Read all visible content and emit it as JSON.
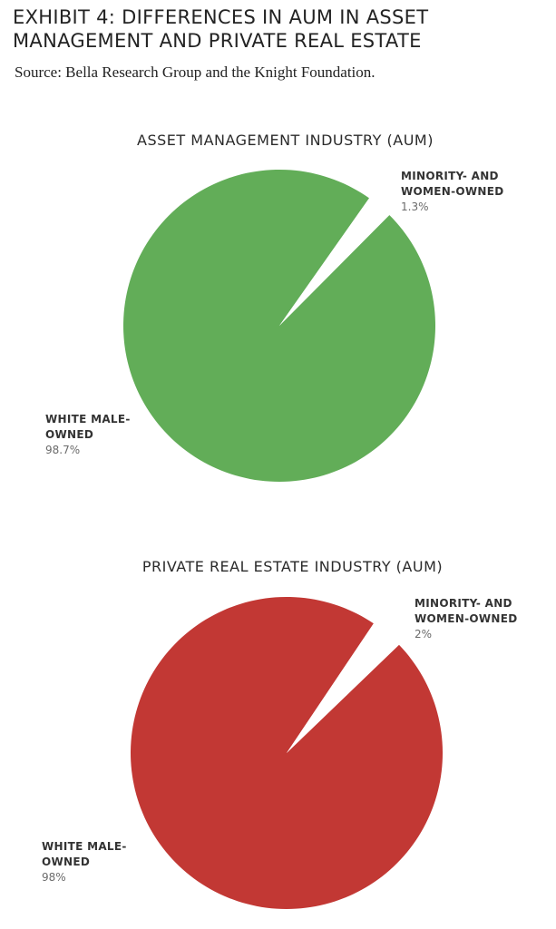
{
  "header": {
    "title_line1": "EXHIBIT 4: DIFFERENCES IN AUM IN ASSET",
    "title_line2": "MANAGEMENT AND PRIVATE REAL ESTATE",
    "source": "Source: Bella Research Group and the Knight Foundation."
  },
  "chart_data": [
    {
      "type": "pie",
      "title": "ASSET MANAGEMENT INDUSTRY (AUM)",
      "color": "#62ad58",
      "slices": [
        {
          "label_line1": "WHITE MALE-",
          "label_line2": "OWNED",
          "value": 98.7,
          "display": "98.7%"
        },
        {
          "label_line1": "MINORITY- AND",
          "label_line2": "WOMEN-OWNED",
          "value": 1.3,
          "display": "1.3%"
        }
      ]
    },
    {
      "type": "pie",
      "title": "PRIVATE REAL ESTATE INDUSTRY (AUM)",
      "color": "#c23834",
      "slices": [
        {
          "label_line1": "WHITE MALE-",
          "label_line2": "OWNED",
          "value": 98,
          "display": "98%"
        },
        {
          "label_line1": "MINORITY- AND",
          "label_line2": "WOMEN-OWNED",
          "value": 2,
          "display": "2%"
        }
      ]
    }
  ]
}
